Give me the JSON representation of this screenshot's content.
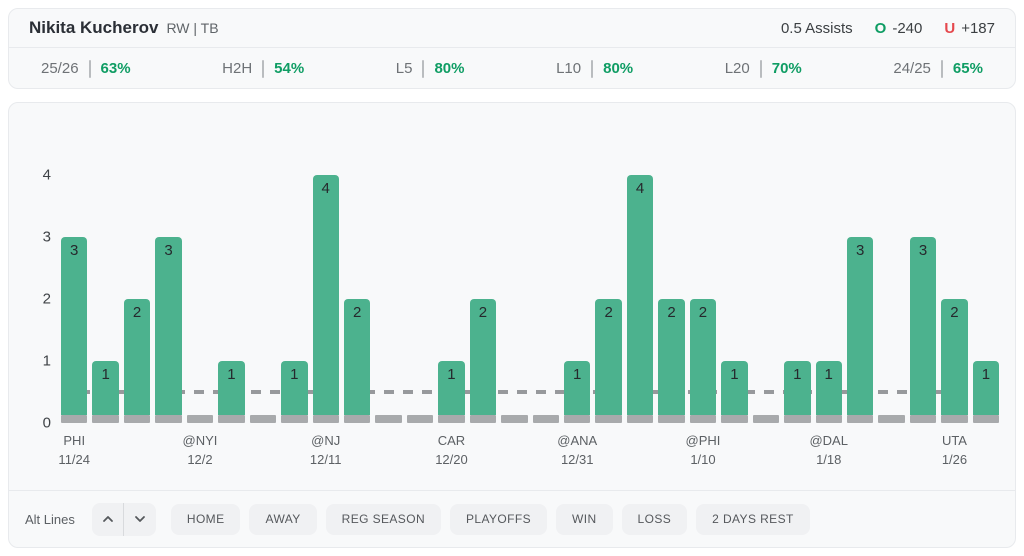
{
  "header": {
    "player_name": "Nikita Kucherov",
    "position_team": "RW | TB",
    "line_label": "0.5 Assists",
    "over": {
      "marker": "O",
      "odds": "-240"
    },
    "under": {
      "marker": "U",
      "odds": "+187"
    }
  },
  "stats": [
    {
      "label": "25/26",
      "value": "63%"
    },
    {
      "label": "H2H",
      "value": "54%"
    },
    {
      "label": "L5",
      "value": "80%"
    },
    {
      "label": "L10",
      "value": "80%"
    },
    {
      "label": "L20",
      "value": "70%"
    },
    {
      "label": "24/25",
      "value": "65%"
    }
  ],
  "chart_data": {
    "type": "bar",
    "title": "",
    "xlabel": "",
    "ylabel": "",
    "ylim": [
      0,
      4
    ],
    "yticks": [
      0,
      1,
      2,
      3,
      4
    ],
    "prop_line": 0.5,
    "grid": false,
    "values": [
      3,
      1,
      2,
      3,
      0,
      1,
      0,
      1,
      4,
      2,
      0,
      0,
      1,
      2,
      0,
      0,
      1,
      2,
      4,
      2,
      2,
      1,
      0,
      1,
      1,
      3,
      0,
      3,
      2,
      1
    ],
    "x_tick_labels": [
      {
        "index": 0,
        "opponent": "PHI",
        "date": "11/24"
      },
      {
        "index": 4,
        "opponent": "@NYI",
        "date": "12/2"
      },
      {
        "index": 8,
        "opponent": "@NJ",
        "date": "12/11"
      },
      {
        "index": 12,
        "opponent": "CAR",
        "date": "12/20"
      },
      {
        "index": 16,
        "opponent": "@ANA",
        "date": "12/31"
      },
      {
        "index": 20,
        "opponent": "@PHI",
        "date": "1/10"
      },
      {
        "index": 24,
        "opponent": "@DAL",
        "date": "1/18"
      },
      {
        "index": 28,
        "opponent": "UTA",
        "date": "1/26"
      }
    ]
  },
  "toolbar": {
    "alt_lines_label": "Alt Lines",
    "filters": [
      "HOME",
      "AWAY",
      "REG SEASON",
      "PLAYOFFS",
      "WIN",
      "LOSS",
      "2 DAYS REST"
    ]
  },
  "colors": {
    "bar_green": "#4cb28e",
    "zero_stub_gray": "#a8aaac",
    "prop_line_gray": "#97999c",
    "text_green": "#0f9d64",
    "text_red": "#e5484d",
    "card_bg": "#f8f9fa"
  }
}
